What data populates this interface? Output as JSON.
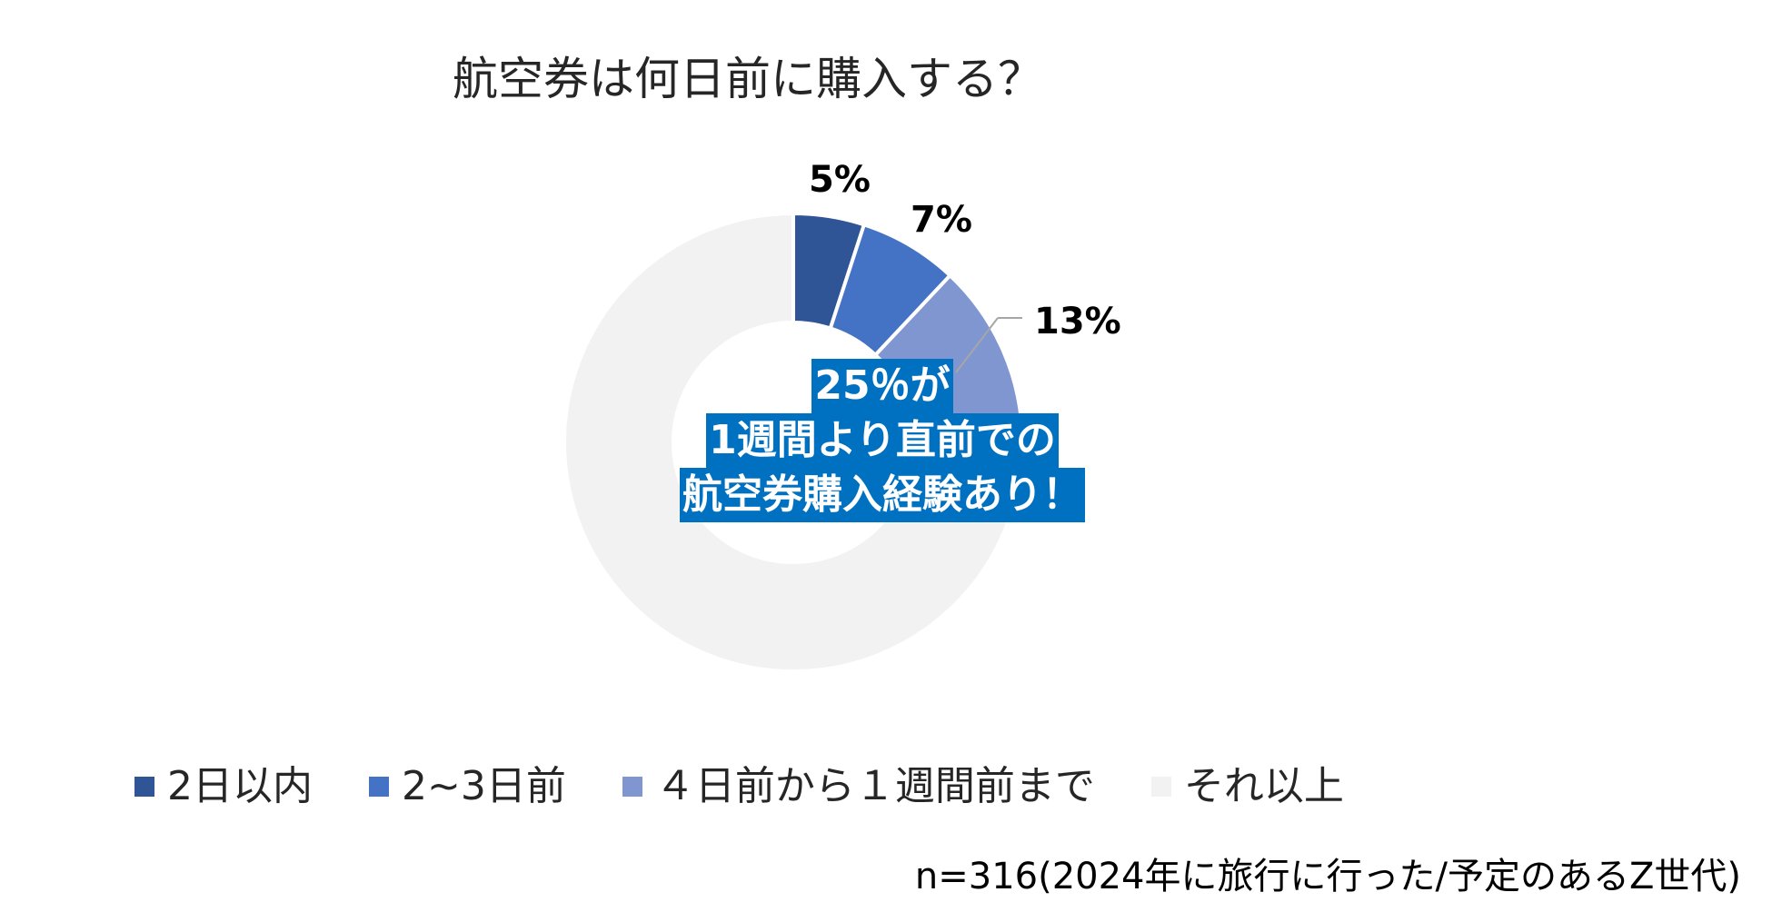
{
  "chart_data": {
    "type": "pie",
    "title": "航空券は何日前に購入する？",
    "categories": [
      "2日以内",
      "2~3日前",
      "４日前から１週間前まで",
      "それ以上"
    ],
    "values": [
      5,
      7,
      13,
      75
    ],
    "data_labels": [
      "5%",
      "7%",
      "13%",
      ""
    ],
    "colors": [
      "#2f5597",
      "#4472c4",
      "#7f96d0",
      "#f2f2f2"
    ],
    "legend_position": "bottom",
    "callout": [
      "25％が",
      "1週間より直前での",
      "航空券購入経験あり！"
    ],
    "callout_color": "#0070c0",
    "footnote": "n=316(2024年に旅行に行った/予定のあるZ世代)"
  }
}
